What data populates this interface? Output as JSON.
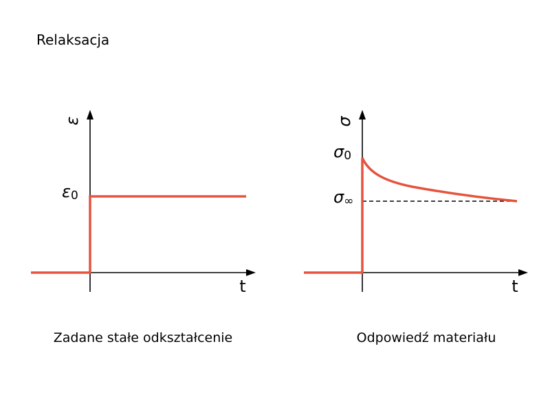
{
  "title": "Relaksacja",
  "panels": [
    {
      "y_label": "ε",
      "level_label": {
        "base": "ε",
        "sub": "0"
      },
      "x_label": "t",
      "caption": "Zadane stałe odkształcenie"
    },
    {
      "y_label": "σ",
      "start_label": {
        "base": "σ",
        "sub": "0"
      },
      "limit_label": {
        "base": "σ",
        "sub": "∞"
      },
      "x_label": "t",
      "caption": "Odpowiedź materiału"
    }
  ]
}
